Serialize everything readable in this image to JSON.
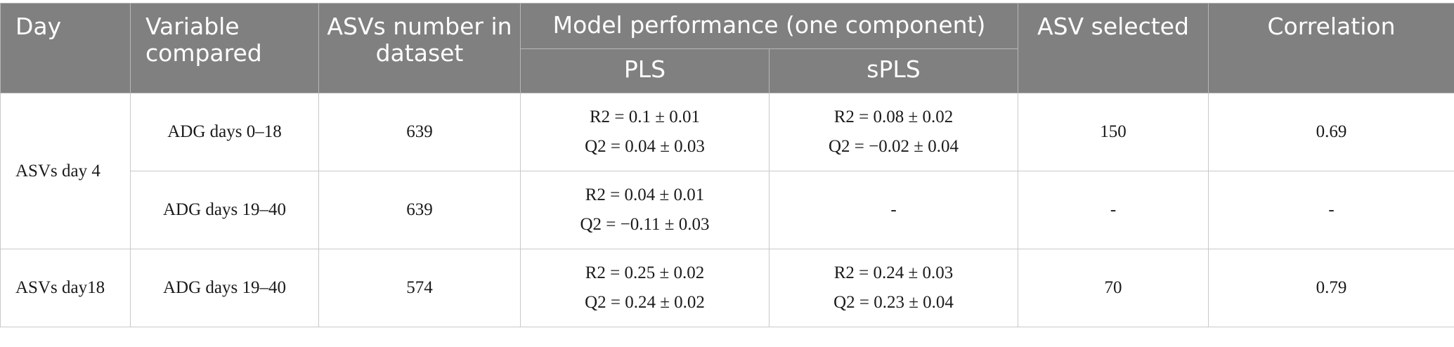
{
  "header": {
    "day": "Day",
    "variable_compared": "Variable compared",
    "asv_number": "ASVs number in dataset",
    "model_performance": "Model performance (one component)",
    "pls": "PLS",
    "spls": "sPLS",
    "asv_selected": "ASV selected",
    "correlation": "Correlation"
  },
  "rows": [
    {
      "day": "ASVs day 4",
      "variable": "ADG days 0–18",
      "asv_number": "639",
      "pls_r2": "R2 = 0.1 ± 0.01",
      "pls_q2": "Q2 = 0.04 ± 0.03",
      "spls_r2": "R2 = 0.08 ± 0.02",
      "spls_q2": "Q2 = −0.02 ± 0.04",
      "asv_selected": "150",
      "correlation": "0.69"
    },
    {
      "variable": "ADG days 19–40",
      "asv_number": "639",
      "pls_r2": "R2 = 0.04 ± 0.01",
      "pls_q2": "Q2 = −0.11 ± 0.03",
      "spls": "-",
      "asv_selected": "-",
      "correlation": "-"
    },
    {
      "day": "ASVs day18",
      "variable": "ADG days 19–40",
      "asv_number": "574",
      "pls_r2": "R2 = 0.25 ± 0.02",
      "pls_q2": "Q2 = 0.24 ± 0.02",
      "spls_r2": "R2 = 0.24 ± 0.03",
      "spls_q2": "Q2 = 0.23 ± 0.04",
      "asv_selected": "70",
      "correlation": "0.79"
    }
  ]
}
